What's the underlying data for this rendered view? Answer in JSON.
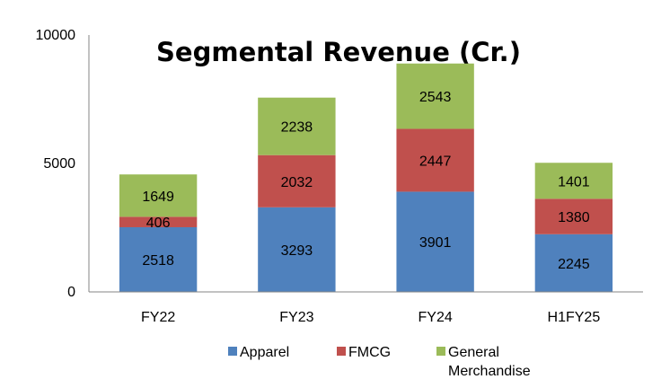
{
  "chart_data": {
    "type": "bar",
    "stacked": true,
    "title": "Segmental Revenue (Cr.)",
    "xlabel": "",
    "ylabel": "",
    "categories": [
      "FY22",
      "FY23",
      "FY24",
      "H1FY25"
    ],
    "series": [
      {
        "name": "Apparel",
        "color": "#4F81BD",
        "values": [
          2518,
          3293,
          3901,
          2245
        ]
      },
      {
        "name": "FMCG",
        "color": "#C0504D",
        "values": [
          406,
          2032,
          2447,
          1380
        ]
      },
      {
        "name": "General Merchandise",
        "color": "#9BBB59",
        "values": [
          1649,
          2238,
          2543,
          1401
        ]
      }
    ],
    "ylim": [
      0,
      10000
    ],
    "yticks": [
      0,
      5000,
      10000
    ],
    "grid": false,
    "legend_position": "bottom",
    "legend_lines": [
      [
        "Apparel"
      ],
      [
        "FMCG"
      ],
      [
        "General",
        "Merchandise"
      ]
    ]
  }
}
